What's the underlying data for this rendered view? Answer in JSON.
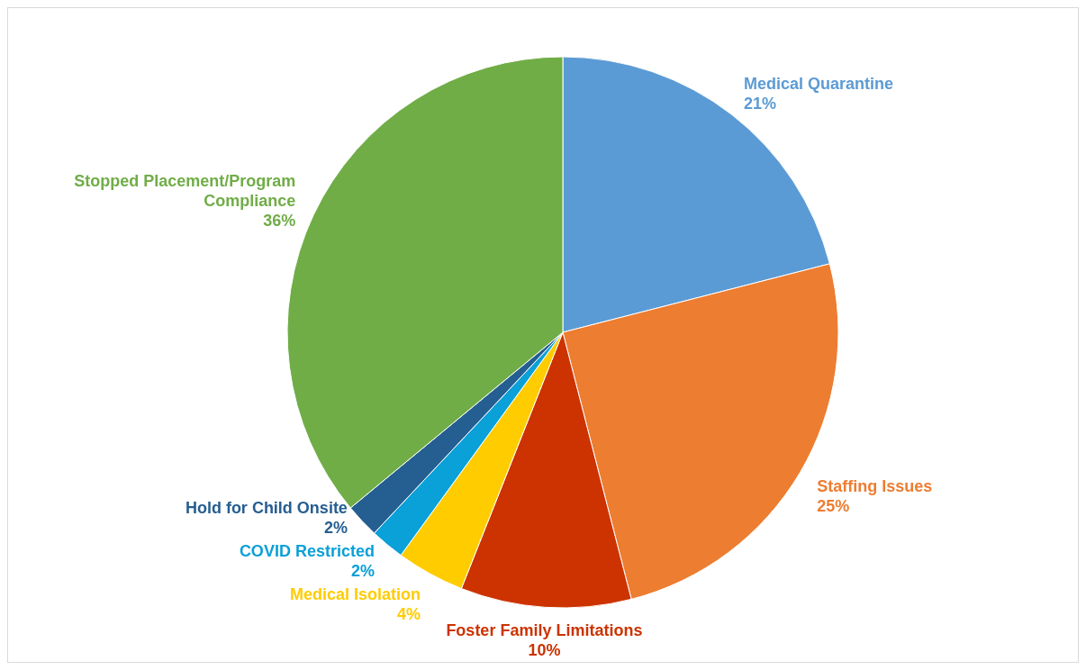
{
  "chart_data": {
    "type": "pie",
    "categories": [
      "Medical Quarantine",
      "Staffing Issues",
      "Foster Family Limitations",
      "Medical Isolation",
      "COVID Restricted",
      "Hold for Child Onsite",
      "Stopped Placement/Program Compliance"
    ],
    "values": [
      21,
      25,
      10,
      4,
      2,
      2,
      36
    ],
    "value_labels": [
      "21%",
      "25%",
      "10%",
      "4%",
      "2%",
      "2%",
      "36%"
    ],
    "colors": [
      "#5b9bd5",
      "#ed7d31",
      "#cc3300",
      "#ffcc00",
      "#0aa0d8",
      "#255e91",
      "#70ad47"
    ],
    "legend": false
  }
}
